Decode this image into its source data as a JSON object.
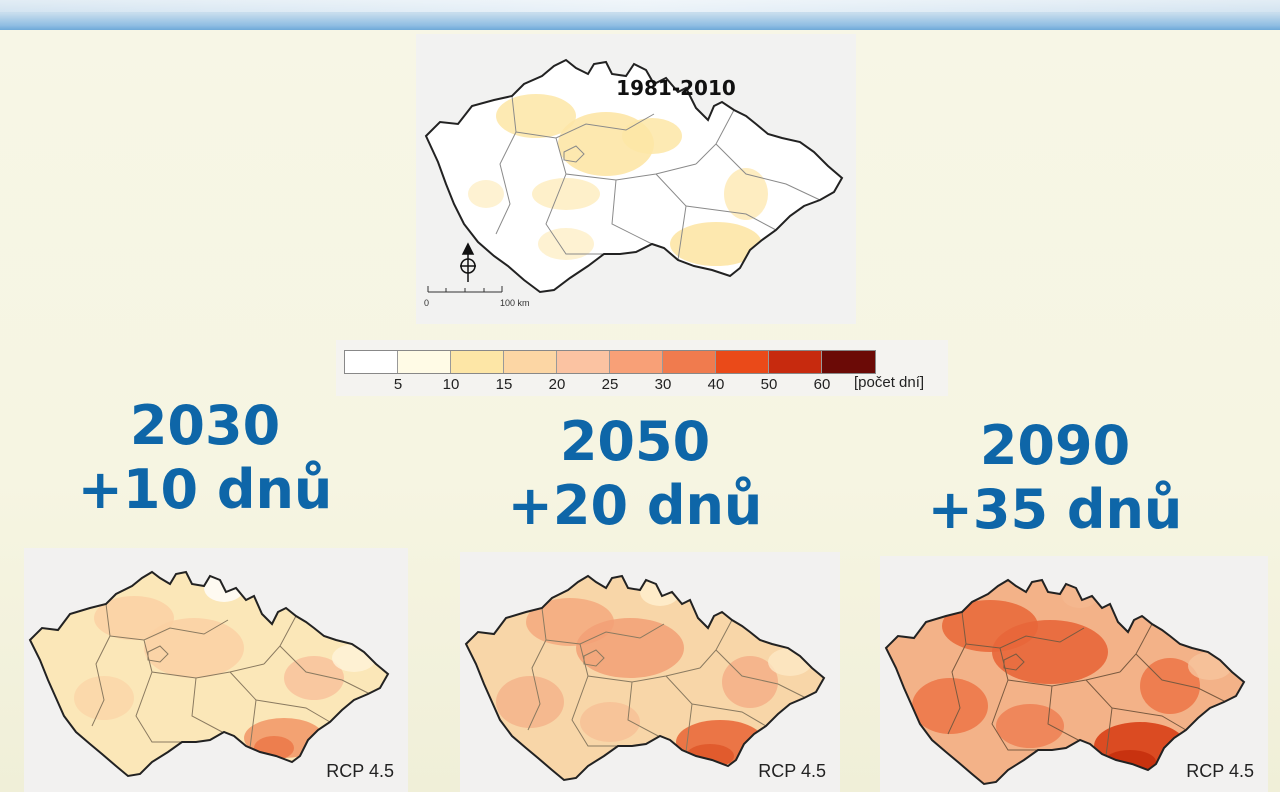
{
  "baseline_map": {
    "period": "1981-2010",
    "scale_start": "0",
    "scale_end": "100 km",
    "north_arrow_icon": "north-arrow-icon"
  },
  "legend": {
    "ticks": [
      "5",
      "10",
      "15",
      "20",
      "25",
      "30",
      "40",
      "50",
      "60"
    ],
    "unit": "[počet dní]",
    "colors": [
      "#ffffff",
      "#fffbe6",
      "#fde6a6",
      "#fcd6a4",
      "#fbc3a2",
      "#f8a077",
      "#f07b4e",
      "#ea4a19",
      "#c72a0e",
      "#6b0a06"
    ]
  },
  "projections": [
    {
      "year": "2030",
      "change": "+10 dnů",
      "scenario": "RCP 4.5"
    },
    {
      "year": "2050",
      "change": "+20 dnů",
      "scenario": "RCP 4.5"
    },
    {
      "year": "2090",
      "change": "+35 dnů",
      "scenario": "RCP 4.5"
    }
  ]
}
